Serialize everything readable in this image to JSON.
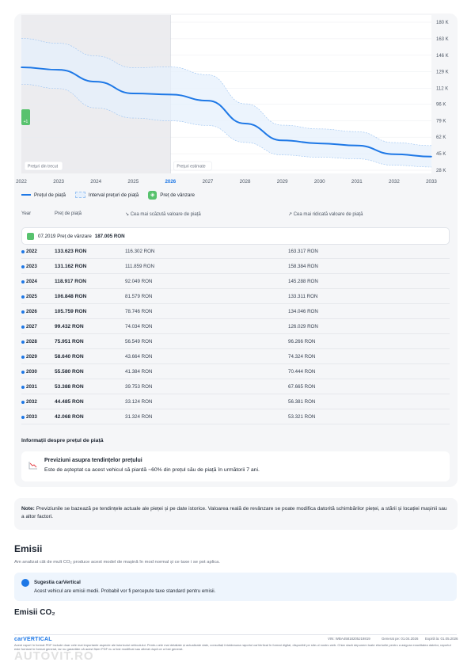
{
  "chart_data": {
    "type": "line",
    "x": [
      2022,
      2023,
      2024,
      2025,
      2026,
      2027,
      2028,
      2029,
      2030,
      2031,
      2032,
      2033
    ],
    "series": [
      {
        "name": "Prețul de piață",
        "values": [
          133623,
          131162,
          118917,
          106848,
          105759,
          99432,
          75951,
          58640,
          55580,
          53388,
          44485,
          42068
        ]
      },
      {
        "name": "Interval prețuri de piață (min)",
        "values": [
          116302,
          111859,
          92049,
          81579,
          78746,
          74034,
          56549,
          43664,
          41384,
          39753,
          33124,
          31324
        ]
      },
      {
        "name": "Interval prețuri de piață (max)",
        "values": [
          163317,
          158384,
          145288,
          133311,
          134046,
          126029,
          96266,
          74324,
          70444,
          67665,
          56381,
          53321
        ]
      }
    ],
    "ylim": [
      28000,
      180000
    ],
    "y_ticks": [
      "180 K",
      "163 K",
      "146 K",
      "129 K",
      "112 K",
      "96 K",
      "79 K",
      "62 K",
      "45 K",
      "28 K"
    ],
    "y_tick_values": [
      180000,
      163000,
      146000,
      129000,
      112000,
      96000,
      79000,
      62000,
      45000,
      28000
    ],
    "x_ticks": [
      "2022",
      "2023",
      "2024",
      "2025",
      "2026",
      "2027",
      "2028",
      "2029",
      "2030",
      "2031",
      "2032",
      "2033"
    ],
    "current_year": "2026",
    "past_label": "Prețuri din trecut",
    "future_label": "Prețuri estimate",
    "sale_marker_label": "+1",
    "grid": true,
    "colors": {
      "line": "#1e78e6",
      "band": "#e6f0fc",
      "band_border": "#9cc4f2",
      "past_bg": "#ececef",
      "sale": "#58c26e"
    }
  },
  "legend": {
    "market_price": "Prețul de piață",
    "range": "Interval prețuri de piață",
    "sale_price": "Preț de vânzare"
  },
  "table": {
    "headers": {
      "year": "Year",
      "price": "Preț de piață",
      "low": "Cea mai scăzută valoare de piață",
      "high": "Cea mai ridicată valoare de piață"
    },
    "sale": {
      "date": "07.2019",
      "label": "Preț de vânzare",
      "value": "187.005 RON"
    },
    "rows": [
      {
        "year": "2022",
        "price": "133.623 RON",
        "low": "116.302 RON",
        "high": "163.317 RON"
      },
      {
        "year": "2023",
        "price": "131.162 RON",
        "low": "111.859 RON",
        "high": "158.384 RON"
      },
      {
        "year": "2024",
        "price": "118.917 RON",
        "low": "92.049 RON",
        "high": "145.288 RON"
      },
      {
        "year": "2025",
        "price": "106.848 RON",
        "low": "81.579 RON",
        "high": "133.311 RON"
      },
      {
        "year": "2026",
        "price": "105.759 RON",
        "low": "78.746 RON",
        "high": "134.046 RON"
      },
      {
        "year": "2027",
        "price": "99.432 RON",
        "low": "74.034 RON",
        "high": "126.029 RON"
      },
      {
        "year": "2028",
        "price": "75.951 RON",
        "low": "56.549 RON",
        "high": "96.266 RON"
      },
      {
        "year": "2029",
        "price": "58.640 RON",
        "low": "43.664 RON",
        "high": "74.324 RON"
      },
      {
        "year": "2030",
        "price": "55.580 RON",
        "low": "41.384 RON",
        "high": "70.444 RON"
      },
      {
        "year": "2031",
        "price": "53.388 RON",
        "low": "39.753 RON",
        "high": "67.665 RON"
      },
      {
        "year": "2032",
        "price": "44.485 RON",
        "low": "33.124 RON",
        "high": "56.381 RON"
      },
      {
        "year": "2033",
        "price": "42.068 RON",
        "low": "31.324 RON",
        "high": "53.321 RON"
      }
    ]
  },
  "info": {
    "title": "Informații despre prețul de piață",
    "trend_title": "Previziuni asupra tendințelor prețului",
    "trend_text": "Este de așteptat ca acest vehicul să piardă ~60% din prețul său de piață în următorii 7 ani."
  },
  "note": {
    "label": "Note:",
    "text": "Previziunile se bazează pe tendințele actuale ale pieței și pe date istorice. Valoarea reală de revânzare se poate modifica datorită schimbărilor pieței, a stării și locației mașinii sau a altor factori."
  },
  "emissions": {
    "title": "Emisii",
    "subtitle": "Am analizat cât de mult CO₂ produce acest model de mașină în mod normal și ce taxe i se pot aplica.",
    "suggestion_title": "Sugestia carVertical",
    "suggestion_text": "Acest vehicul are emisii medii. Probabil vor fi percepute taxe standard pentru emisii.",
    "co2_title": "Emisii CO₂"
  },
  "footer": {
    "brand": "carVERTICAL",
    "vin": "VIN: WBA45818205J19819",
    "generated": "Generat pe: 01.04.2026",
    "expires": "Expiră la: 01.05.2026",
    "disclaimer": "Acest raport în format PDF include doar cele mai importante aspecte ale istoricului vehiculului. Pentru cele mai detaliate și actualizate date, consultați întotdeauna raportul carVertical în format digital, disponibil pe site-ul nostru web. Chiar dacă depunem toate eforturile pentru a asigura exactitatea datelor, raportul este furnizat în format general, iar nu garantăm că acest fișier PDF nu a fost modificat sau alterat după ce a fost generat.",
    "watermark": "AUTOVIT.RO"
  }
}
